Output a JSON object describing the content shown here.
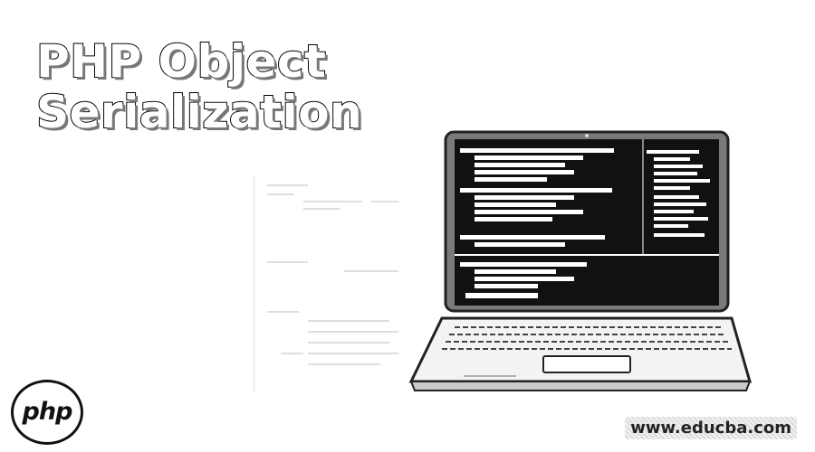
{
  "title": {
    "line1": "PHP Object",
    "line2": "Serialization"
  },
  "logo": {
    "text": "php"
  },
  "watermark": {
    "text": "www.educba.com"
  },
  "icons": [
    "laptop-icon",
    "php-logo-icon"
  ],
  "colors": {
    "background": "#ffffff",
    "ink": "#000000",
    "screen": "#111111",
    "code": "#ffffff"
  }
}
